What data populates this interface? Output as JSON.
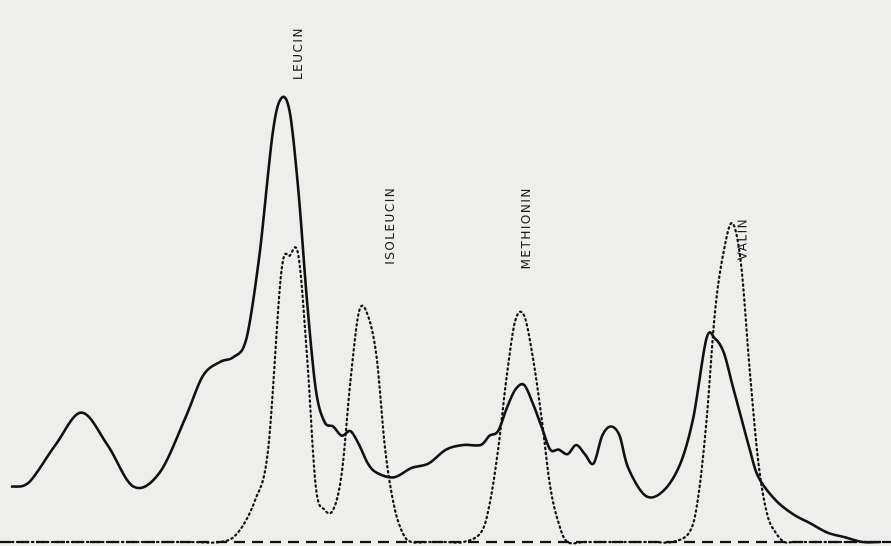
{
  "chart_data": {
    "type": "line",
    "title": "",
    "xlabel": "",
    "ylabel": "",
    "grid": false,
    "xlim": [
      0,
      100
    ],
    "ylim": [
      0,
      100
    ],
    "colors": {
      "ink": "#111111",
      "background": "#eeeeec"
    },
    "series": [
      {
        "style": "solid",
        "x": [
          0,
          2,
          5,
          8,
          11,
          14,
          17,
          20,
          22,
          24,
          25.5,
          27,
          28.5,
          30,
          31,
          32,
          33,
          34,
          35,
          36,
          37,
          38,
          39,
          40,
          41,
          42,
          44,
          46,
          48,
          50,
          52,
          54,
          55,
          56,
          57,
          58,
          59,
          60,
          61,
          62,
          63,
          64,
          65,
          66,
          67,
          68,
          69,
          70,
          71,
          73,
          75,
          77,
          78.5,
          80,
          81,
          82,
          83,
          84,
          85,
          86,
          88,
          90,
          92,
          94,
          96,
          98,
          100
        ],
        "y": [
          12,
          13,
          21,
          28,
          21,
          12,
          15,
          27,
          36,
          39,
          40,
          44,
          62,
          88,
          96,
          93,
          76,
          52,
          33,
          26,
          25,
          23,
          24,
          21,
          17,
          15,
          14,
          16,
          17,
          20,
          21,
          21,
          23,
          24,
          29,
          33,
          34,
          30,
          25,
          20,
          20,
          19,
          21,
          19,
          17,
          23,
          25,
          23,
          16,
          10,
          11,
          17,
          27,
          44,
          44,
          41,
          34,
          27,
          20,
          14,
          9,
          6,
          4,
          2,
          1,
          0,
          0
        ]
      },
      {
        "style": "dotted",
        "x": [
          0,
          10,
          20,
          24,
          26,
          28,
          29.5,
          31,
          32,
          33,
          34,
          35,
          36,
          37,
          38,
          39,
          40,
          41,
          42,
          43,
          44,
          45,
          46,
          48,
          50,
          52,
          54,
          55,
          56,
          57,
          58,
          59,
          60,
          61,
          62,
          63,
          64,
          66,
          68,
          70,
          72,
          74,
          76,
          78,
          79,
          80,
          81,
          82,
          83,
          84,
          85,
          86,
          87,
          88,
          89,
          90,
          92,
          95,
          100
        ],
        "y": [
          0,
          0,
          0,
          0,
          2,
          9,
          20,
          58,
          62,
          62,
          40,
          12,
          7,
          7,
          15,
          35,
          50,
          49,
          40,
          20,
          8,
          2,
          0,
          0,
          0,
          0,
          2,
          8,
          20,
          36,
          48,
          49,
          40,
          27,
          12,
          4,
          0,
          0,
          0,
          0,
          0,
          0,
          0,
          2,
          9,
          26,
          50,
          63,
          69,
          60,
          37,
          17,
          6,
          2,
          0,
          0,
          0,
          0,
          0
        ]
      }
    ],
    "annotations": [
      {
        "text": "LEUCIN",
        "x": 33,
        "y": 100
      },
      {
        "text": "ISOLEUCIN",
        "x": 43.6,
        "y": 60
      },
      {
        "text": "METHIONIN",
        "x": 59.3,
        "y": 59
      },
      {
        "text": "VALIN",
        "x": 84.2,
        "y": 61
      }
    ]
  }
}
